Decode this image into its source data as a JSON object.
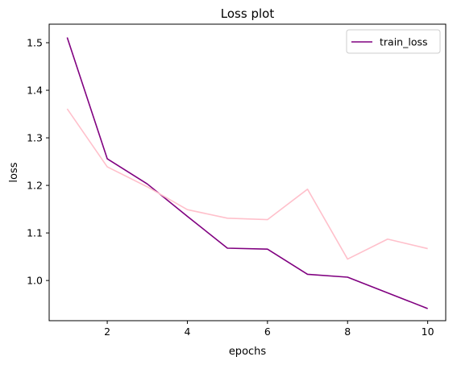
{
  "chart_data": {
    "type": "line",
    "title": "Loss plot",
    "xlabel": "epochs",
    "ylabel": "loss",
    "xlim": [
      0.55,
      10.45
    ],
    "ylim": [
      0.9155,
      1.539
    ],
    "x_ticks": [
      2,
      4,
      6,
      8,
      10
    ],
    "y_ticks": [
      1.0,
      1.1,
      1.2,
      1.3,
      1.4,
      1.5
    ],
    "grid": false,
    "legend_position": "top-right",
    "x": [
      1,
      2,
      3,
      4,
      5,
      6,
      7,
      8,
      9,
      10
    ],
    "series": [
      {
        "name": "train_loss",
        "color": "#800080",
        "in_legend": true,
        "values": [
          1.511,
          1.256,
          1.203,
          1.135,
          1.068,
          1.066,
          1.013,
          1.007,
          0.974,
          0.941
        ]
      },
      {
        "color": "#ffc0cb",
        "in_legend": false,
        "values": [
          1.361,
          1.239,
          1.197,
          1.149,
          1.131,
          1.128,
          1.192,
          1.045,
          1.087,
          1.067
        ]
      }
    ]
  }
}
